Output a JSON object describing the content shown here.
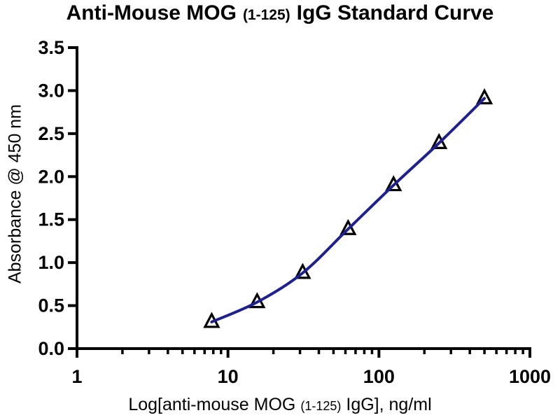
{
  "chart_data": {
    "type": "scatter",
    "title": {
      "part1": "Anti-Mouse MOG",
      "part2": "(1-125)",
      "part3": "IgG Standard Curve"
    },
    "xlabel": {
      "part1": "Log[anti-mouse MOG",
      "part2": "(1-125)",
      "part3": "IgG], ng/ml"
    },
    "ylabel": "Absorbance @ 450 nm",
    "x_scale": "log10",
    "xlim": [
      1,
      1000
    ],
    "ylim": [
      0,
      3.5
    ],
    "x_major_ticks": [
      1,
      10,
      100,
      1000
    ],
    "x_major_tick_labels": [
      "1",
      "10",
      "100",
      "1000"
    ],
    "x_minor_ticks_per_decade": [
      2,
      3,
      4,
      5,
      6,
      7,
      8,
      9
    ],
    "y_ticks": [
      0,
      0.5,
      1,
      1.5,
      2,
      2.5,
      3,
      3.5
    ],
    "y_tick_labels": [
      "0.0",
      "0.5",
      "1.0",
      "1.5",
      "2.0",
      "2.5",
      "3.0",
      "3.5"
    ],
    "grid": false,
    "legend": "none",
    "background_color": "#ffffff",
    "axis_color": "#000000",
    "series": [
      {
        "name": "standard-curve",
        "marker": "open-up-triangle",
        "marker_stroke_color": "#000000",
        "marker_fill_color": "#ffffff",
        "line_color": "#1e2090",
        "x": [
          7.8,
          15.6,
          31.25,
          62.5,
          125,
          250,
          500
        ],
        "y": [
          0.31,
          0.54,
          0.88,
          1.39,
          1.9,
          2.39,
          2.91
        ]
      }
    ]
  }
}
